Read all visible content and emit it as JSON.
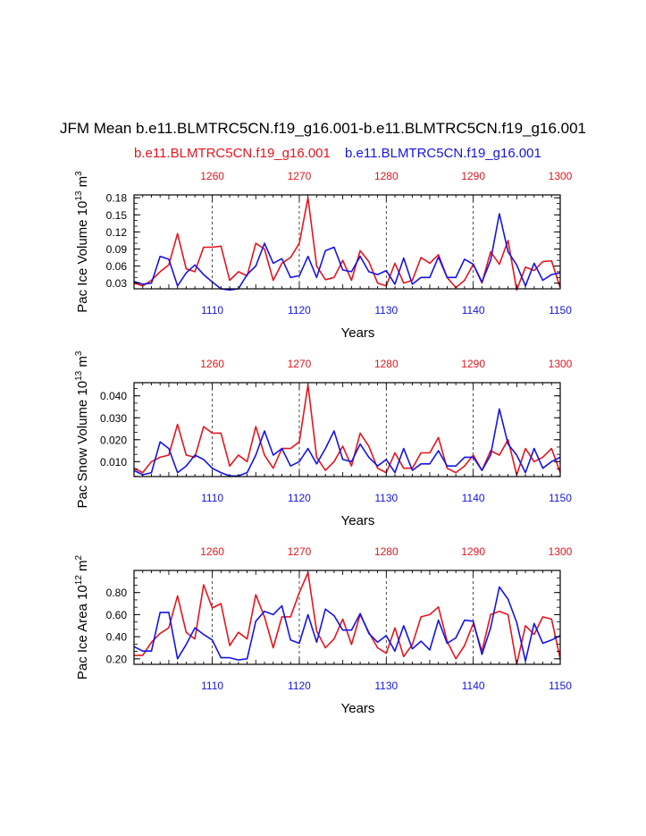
{
  "figure": {
    "title": "JFM Mean b.e11.BLMTRC5CN.f19_g16.001-b.e11.BLMTRC5CN.f19_g16.001",
    "subtitle_left": "b.e11.BLMTRC5CN.f19_g16.001",
    "subtitle_right": "b.e11.BLMTRC5CN.f19_g16.001",
    "colors": {
      "top_series": "#e8141c",
      "bottom_series": "#1414e6",
      "axis": "#000000"
    }
  },
  "chart_data": [
    {
      "type": "line",
      "ylabel": "Pac Ice Volume 10",
      "ylabel_exp": "13",
      "ylabel_unit": " m",
      "ylabel_unit_exp": "3",
      "xlabel": "Years",
      "ylim": [
        0.02,
        0.185
      ],
      "yticks": [
        0.03,
        0.06,
        0.09,
        0.12,
        0.15,
        0.18
      ],
      "ytick_labels": [
        "0.03",
        "0.06",
        "0.09",
        "0.12",
        "0.15",
        "0.18"
      ],
      "xlim_bottom": [
        1101,
        1150
      ],
      "xticks_bottom": [
        1110,
        1120,
        1130,
        1140,
        1150
      ],
      "xlim_top": [
        1251,
        1300
      ],
      "xticks_top": [
        1260,
        1270,
        1280,
        1290,
        1300
      ],
      "series": [
        {
          "name": "b.e11.BLMTRC5CN.f19_g16.001 (1251-1300)",
          "axis": "top",
          "color": "#e8141c",
          "x": [
            1251,
            1252,
            1253,
            1254,
            1255,
            1256,
            1257,
            1258,
            1259,
            1260,
            1261,
            1262,
            1263,
            1264,
            1265,
            1266,
            1267,
            1268,
            1269,
            1270,
            1271,
            1272,
            1273,
            1274,
            1275,
            1276,
            1277,
            1278,
            1279,
            1280,
            1281,
            1282,
            1283,
            1284,
            1285,
            1286,
            1287,
            1288,
            1289,
            1290,
            1291,
            1292,
            1293,
            1294,
            1295,
            1296,
            1297,
            1298,
            1299,
            1300
          ],
          "y": [
            0.03,
            0.025,
            0.035,
            0.05,
            0.062,
            0.117,
            0.055,
            0.05,
            0.093,
            0.093,
            0.095,
            0.035,
            0.05,
            0.043,
            0.1,
            0.09,
            0.035,
            0.065,
            0.075,
            0.1,
            0.18,
            0.06,
            0.036,
            0.04,
            0.07,
            0.035,
            0.087,
            0.068,
            0.03,
            0.025,
            0.065,
            0.03,
            0.035,
            0.075,
            0.065,
            0.08,
            0.04,
            0.022,
            0.035,
            0.063,
            0.03,
            0.085,
            0.063,
            0.105,
            0.018,
            0.058,
            0.052,
            0.068,
            0.069,
            0.022
          ]
        },
        {
          "name": "b.e11.BLMTRC5CN.f19_g16.001 (1101-1150)",
          "axis": "bottom",
          "color": "#1414e6",
          "x": [
            1101,
            1102,
            1103,
            1104,
            1105,
            1106,
            1107,
            1108,
            1109,
            1110,
            1111,
            1112,
            1113,
            1114,
            1115,
            1116,
            1117,
            1118,
            1119,
            1120,
            1121,
            1122,
            1123,
            1124,
            1125,
            1126,
            1127,
            1128,
            1129,
            1130,
            1131,
            1132,
            1133,
            1134,
            1135,
            1136,
            1137,
            1138,
            1139,
            1140,
            1141,
            1142,
            1143,
            1144,
            1145,
            1146,
            1147,
            1148,
            1149,
            1150
          ],
          "y": [
            0.033,
            0.028,
            0.03,
            0.077,
            0.072,
            0.025,
            0.048,
            0.062,
            0.045,
            0.032,
            0.02,
            0.018,
            0.02,
            0.045,
            0.06,
            0.1,
            0.065,
            0.073,
            0.04,
            0.043,
            0.077,
            0.04,
            0.087,
            0.093,
            0.053,
            0.05,
            0.077,
            0.05,
            0.045,
            0.052,
            0.028,
            0.074,
            0.028,
            0.04,
            0.04,
            0.076,
            0.04,
            0.04,
            0.072,
            0.063,
            0.032,
            0.07,
            0.152,
            0.085,
            0.062,
            0.025,
            0.065,
            0.035,
            0.045,
            0.048
          ]
        }
      ]
    },
    {
      "type": "line",
      "ylabel": "Pac Snow Volume 10",
      "ylabel_exp": "13",
      "ylabel_unit": " m",
      "ylabel_unit_exp": "3",
      "xlabel": "Years",
      "ylim": [
        0.0032,
        0.046
      ],
      "yticks": [
        0.01,
        0.02,
        0.03,
        0.04
      ],
      "ytick_labels": [
        "0.010",
        "0.020",
        "0.030",
        "0.040"
      ],
      "xlim_bottom": [
        1101,
        1150
      ],
      "xticks_bottom": [
        1110,
        1120,
        1130,
        1140,
        1150
      ],
      "xlim_top": [
        1251,
        1300
      ],
      "xticks_top": [
        1260,
        1270,
        1280,
        1290,
        1300
      ],
      "series": [
        {
          "name": "b.e11.BLMTRC5CN.f19_g16.001 (1251-1300)",
          "axis": "top",
          "color": "#e8141c",
          "x": [
            1251,
            1252,
            1253,
            1254,
            1255,
            1256,
            1257,
            1258,
            1259,
            1260,
            1261,
            1262,
            1263,
            1264,
            1265,
            1266,
            1267,
            1268,
            1269,
            1270,
            1271,
            1272,
            1273,
            1274,
            1275,
            1276,
            1277,
            1278,
            1279,
            1280,
            1281,
            1282,
            1283,
            1284,
            1285,
            1286,
            1287,
            1288,
            1289,
            1290,
            1291,
            1292,
            1293,
            1294,
            1295,
            1296,
            1297,
            1298,
            1299,
            1300
          ],
          "y": [
            0.007,
            0.005,
            0.01,
            0.012,
            0.013,
            0.027,
            0.013,
            0.012,
            0.026,
            0.023,
            0.023,
            0.008,
            0.013,
            0.01,
            0.026,
            0.013,
            0.007,
            0.016,
            0.016,
            0.019,
            0.045,
            0.012,
            0.006,
            0.01,
            0.017,
            0.008,
            0.023,
            0.017,
            0.007,
            0.005,
            0.014,
            0.007,
            0.007,
            0.014,
            0.014,
            0.021,
            0.007,
            0.005,
            0.008,
            0.013,
            0.006,
            0.015,
            0.013,
            0.02,
            0.004,
            0.016,
            0.01,
            0.012,
            0.016,
            0.005
          ]
        },
        {
          "name": "b.e11.BLMTRC5CN.f19_g16.001 (1101-1150)",
          "axis": "bottom",
          "color": "#1414e6",
          "x": [
            1101,
            1102,
            1103,
            1104,
            1105,
            1106,
            1107,
            1108,
            1109,
            1110,
            1111,
            1112,
            1113,
            1114,
            1115,
            1116,
            1117,
            1118,
            1119,
            1120,
            1121,
            1122,
            1123,
            1124,
            1125,
            1126,
            1127,
            1128,
            1129,
            1130,
            1131,
            1132,
            1133,
            1134,
            1135,
            1136,
            1137,
            1138,
            1139,
            1140,
            1141,
            1142,
            1143,
            1144,
            1145,
            1146,
            1147,
            1148,
            1149,
            1150
          ],
          "y": [
            0.006,
            0.004,
            0.005,
            0.019,
            0.016,
            0.005,
            0.008,
            0.013,
            0.011,
            0.007,
            0.005,
            0.0035,
            0.0035,
            0.005,
            0.013,
            0.024,
            0.013,
            0.016,
            0.008,
            0.01,
            0.016,
            0.009,
            0.016,
            0.024,
            0.011,
            0.01,
            0.018,
            0.012,
            0.008,
            0.011,
            0.005,
            0.016,
            0.006,
            0.009,
            0.009,
            0.015,
            0.008,
            0.008,
            0.012,
            0.012,
            0.006,
            0.013,
            0.034,
            0.018,
            0.013,
            0.005,
            0.016,
            0.007,
            0.01,
            0.012
          ]
        }
      ]
    },
    {
      "type": "line",
      "ylabel": "Pac Ice Area 10",
      "ylabel_exp": "12",
      "ylabel_unit": " m",
      "ylabel_unit_exp": "2",
      "xlabel": "Years",
      "ylim": [
        0.15,
        1.0
      ],
      "yticks": [
        0.2,
        0.4,
        0.6,
        0.8
      ],
      "ytick_labels": [
        "0.20",
        "0.40",
        "0.60",
        "0.80"
      ],
      "xlim_bottom": [
        1101,
        1150
      ],
      "xticks_bottom": [
        1110,
        1120,
        1130,
        1140,
        1150
      ],
      "xlim_top": [
        1251,
        1300
      ],
      "xticks_top": [
        1260,
        1270,
        1280,
        1290,
        1300
      ],
      "series": [
        {
          "name": "b.e11.BLMTRC5CN.f19_g16.001 (1251-1300)",
          "axis": "top",
          "color": "#e8141c",
          "x": [
            1251,
            1252,
            1253,
            1254,
            1255,
            1256,
            1257,
            1258,
            1259,
            1260,
            1261,
            1262,
            1263,
            1264,
            1265,
            1266,
            1267,
            1268,
            1269,
            1270,
            1271,
            1272,
            1273,
            1274,
            1275,
            1276,
            1277,
            1278,
            1279,
            1280,
            1281,
            1282,
            1283,
            1284,
            1285,
            1286,
            1287,
            1288,
            1289,
            1290,
            1291,
            1292,
            1293,
            1294,
            1295,
            1296,
            1297,
            1298,
            1299,
            1300
          ],
          "y": [
            0.23,
            0.23,
            0.35,
            0.43,
            0.48,
            0.77,
            0.44,
            0.38,
            0.87,
            0.66,
            0.7,
            0.32,
            0.44,
            0.38,
            0.78,
            0.58,
            0.3,
            0.58,
            0.58,
            0.8,
            0.98,
            0.45,
            0.3,
            0.38,
            0.56,
            0.33,
            0.6,
            0.44,
            0.3,
            0.25,
            0.48,
            0.22,
            0.33,
            0.58,
            0.6,
            0.67,
            0.36,
            0.2,
            0.32,
            0.52,
            0.27,
            0.6,
            0.63,
            0.6,
            0.15,
            0.5,
            0.42,
            0.58,
            0.56,
            0.2
          ]
        },
        {
          "name": "b.e11.BLMTRC5CN.f19_g16.001 (1101-1150)",
          "axis": "bottom",
          "color": "#1414e6",
          "x": [
            1101,
            1102,
            1103,
            1104,
            1105,
            1106,
            1107,
            1108,
            1109,
            1110,
            1111,
            1112,
            1113,
            1114,
            1115,
            1116,
            1117,
            1118,
            1119,
            1120,
            1121,
            1122,
            1123,
            1124,
            1125,
            1126,
            1127,
            1128,
            1129,
            1130,
            1131,
            1132,
            1133,
            1134,
            1135,
            1136,
            1137,
            1138,
            1139,
            1140,
            1141,
            1142,
            1143,
            1144,
            1145,
            1146,
            1147,
            1148,
            1149,
            1150
          ],
          "y": [
            0.31,
            0.27,
            0.27,
            0.62,
            0.62,
            0.2,
            0.33,
            0.48,
            0.42,
            0.37,
            0.21,
            0.21,
            0.19,
            0.2,
            0.54,
            0.63,
            0.6,
            0.68,
            0.37,
            0.34,
            0.6,
            0.35,
            0.65,
            0.59,
            0.46,
            0.46,
            0.61,
            0.43,
            0.35,
            0.41,
            0.27,
            0.5,
            0.29,
            0.36,
            0.28,
            0.55,
            0.34,
            0.39,
            0.55,
            0.54,
            0.24,
            0.48,
            0.85,
            0.74,
            0.53,
            0.18,
            0.52,
            0.34,
            0.37,
            0.41
          ]
        }
      ]
    }
  ]
}
